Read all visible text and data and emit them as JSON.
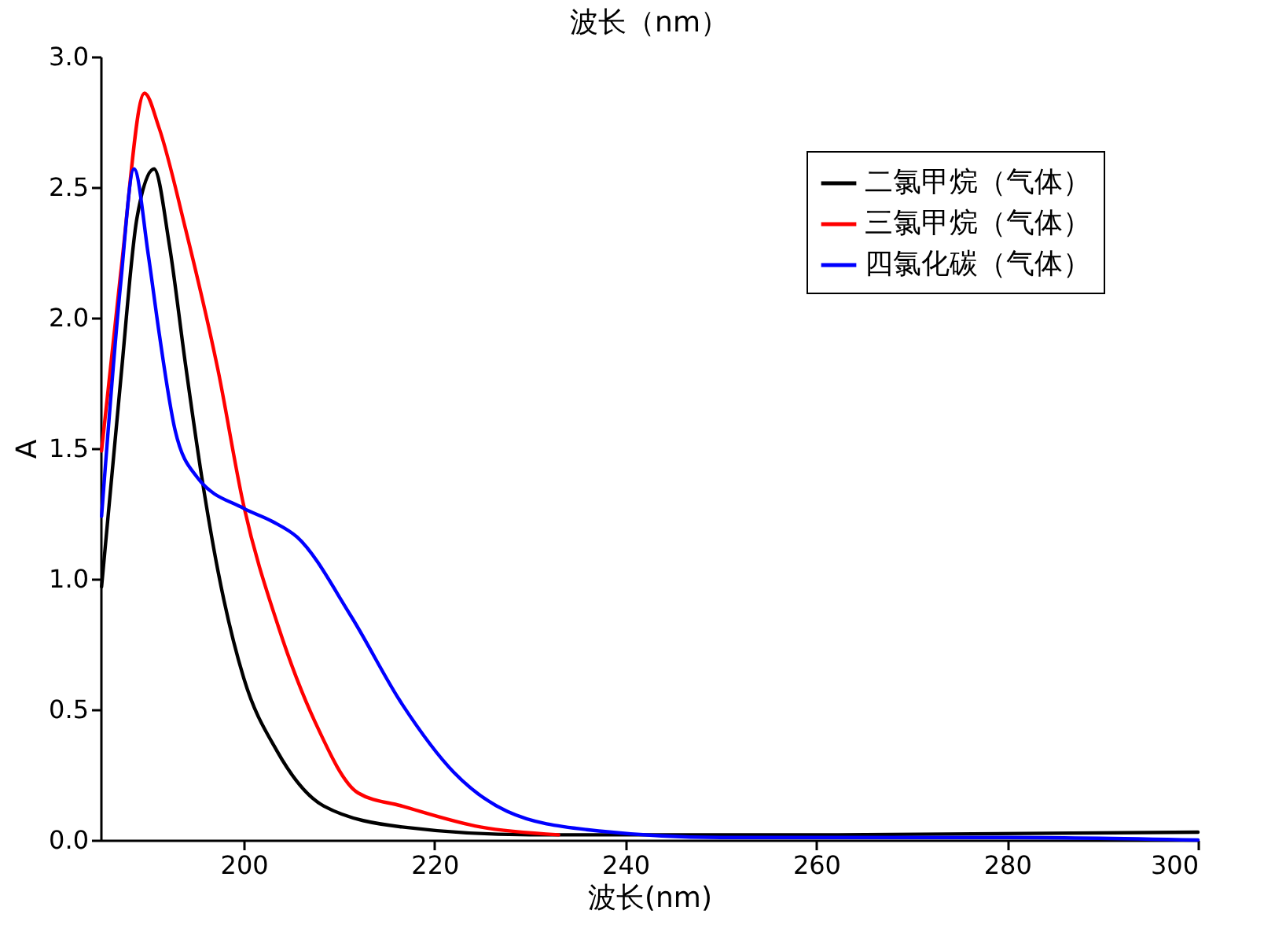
{
  "chart_data": {
    "type": "line",
    "title": "波长（nm）",
    "xlabel": "波长(nm)",
    "ylabel": "A",
    "xlim": [
      185,
      300
    ],
    "ylim": [
      0,
      3
    ],
    "xticks": [
      200,
      220,
      240,
      260,
      280,
      300
    ],
    "yticks": [
      {
        "value": 0,
        "label": "0.0"
      },
      {
        "value": 0.5,
        "label": "0.5"
      },
      {
        "value": 1,
        "label": "1.0"
      },
      {
        "value": 1.5,
        "label": "1.5"
      },
      {
        "value": 2,
        "label": "2.0"
      },
      {
        "value": 2.5,
        "label": "2.5"
      },
      {
        "value": 3,
        "label": "3.0"
      }
    ],
    "grid": false,
    "legend": "top right",
    "line_style": "solid",
    "marker": "none",
    "series": [
      {
        "name": "二氯甲烷（气体）",
        "color": "#000000",
        "x": [
          185.1,
          187.1,
          188.8,
          190.6,
          192.2,
          193.9,
          195.6,
          197.3,
          200,
          203.5,
          208.4,
          216.6,
          230,
          260,
          300
        ],
        "values": [
          0.97,
          1.76,
          2.38,
          2.57,
          2.28,
          1.82,
          1.39,
          1.03,
          0.62,
          0.34,
          0.13,
          0.05,
          0.02,
          0.02,
          0.03
        ]
      },
      {
        "name": "三氯甲烷（气体）",
        "color": "#ff0000",
        "x": [
          185.1,
          187.1,
          189.6,
          191.1,
          193.9,
          197.3,
          200,
          203.6,
          207.5,
          212,
          216.6,
          224.8,
          233
        ],
        "values": [
          1.49,
          2.17,
          2.86,
          2.73,
          2.34,
          1.8,
          1.28,
          0.82,
          0.45,
          0.18,
          0.13,
          0.05,
          0.02
        ]
      },
      {
        "name": "四氯化碳（气体）",
        "color": "#0000ff",
        "x": [
          185.1,
          187.1,
          188.5,
          190,
          191.1,
          192.8,
          195.1,
          200,
          203,
          205.6,
          211.2,
          216.6,
          222,
          227.6,
          235.9,
          250,
          280,
          300
        ],
        "values": [
          1.24,
          2.13,
          2.57,
          2.24,
          1.95,
          1.57,
          1.39,
          1.27,
          1.22,
          1.16,
          0.86,
          0.52,
          0.26,
          0.11,
          0.04,
          0.01,
          0.01,
          0
        ]
      }
    ]
  }
}
